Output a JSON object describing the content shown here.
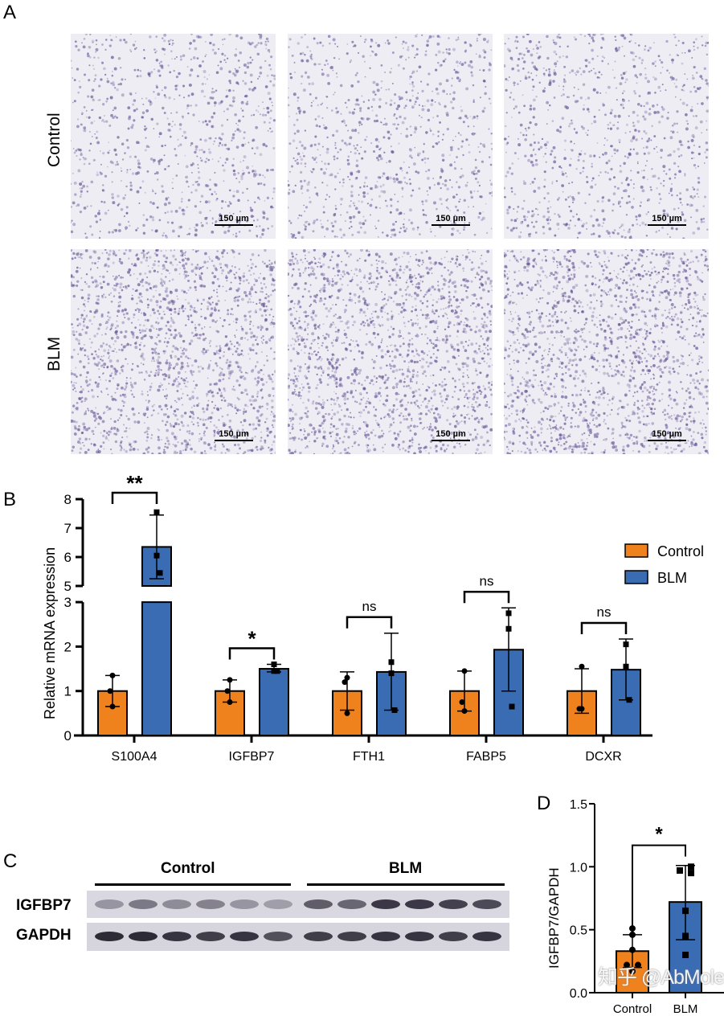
{
  "panel_labels": {
    "a": "A",
    "b": "B",
    "c": "C",
    "d": "D"
  },
  "panel_a": {
    "row_labels": [
      "Control",
      "BLM"
    ],
    "scale_bar_label": "150 µm",
    "tissue_color": "#6a5a9a"
  },
  "panel_c": {
    "group_labels": [
      "Control",
      "BLM"
    ],
    "row_labels": [
      "IGFBP7",
      "GAPDH"
    ]
  },
  "watermark": "知乎 @AbMole",
  "colors": {
    "control": "#f0821e",
    "blm": "#3a6cb4"
  },
  "chart_data": [
    {
      "type": "bar",
      "panel": "B",
      "ylabel": "Relative mRNA expression",
      "categories": [
        "S100A4",
        "IGFBP7",
        "FTH1",
        "FABP5",
        "DCXR"
      ],
      "y_axis_break": {
        "lower": [
          0,
          3
        ],
        "upper": [
          5,
          8
        ]
      },
      "yticks_lower": [
        "0",
        "1",
        "2",
        "3"
      ],
      "yticks_upper": [
        "5",
        "6",
        "7",
        "8"
      ],
      "legend": {
        "placement": "top-right",
        "entries": [
          "Control",
          "BLM"
        ]
      },
      "series": [
        {
          "name": "Control",
          "values": [
            1.0,
            1.0,
            1.0,
            1.0,
            1.0
          ],
          "err_low": [
            0.65,
            0.75,
            0.57,
            0.55,
            0.5
          ],
          "err_high": [
            1.35,
            1.25,
            1.43,
            1.45,
            1.5
          ],
          "points": [
            [
              1.35,
              1.0,
              0.65
            ],
            [
              1.25,
              1.0,
              0.75
            ],
            [
              1.3,
              1.2,
              0.5
            ],
            [
              1.45,
              0.75,
              0.55
            ],
            [
              1.55,
              0.6,
              0.6
            ]
          ]
        },
        {
          "name": "BLM",
          "values": [
            6.35,
            1.5,
            1.43,
            1.93,
            1.48
          ],
          "err_low": [
            5.25,
            1.43,
            0.57,
            1.0,
            0.8
          ],
          "err_high": [
            7.45,
            1.6,
            2.3,
            2.87,
            2.17
          ],
          "points": [
            [
              7.55,
              6.05,
              5.45
            ],
            [
              1.6,
              1.45,
              1.45
            ],
            [
              1.65,
              1.4,
              0.57
            ],
            [
              2.75,
              2.4,
              0.65
            ],
            [
              2.05,
              1.55,
              0.8
            ]
          ]
        }
      ],
      "significance": [
        "**",
        "*",
        "ns",
        "ns",
        "ns"
      ]
    },
    {
      "type": "bar",
      "panel": "D",
      "ylabel": "IGFBP7/GAPDH",
      "categories": [
        "Control",
        "BLM"
      ],
      "ylim": [
        0,
        1.5
      ],
      "yticks": [
        "0.0",
        "0.5",
        "1.0",
        "1.5"
      ],
      "values": [
        0.33,
        0.72
      ],
      "err_low": [
        0.2,
        0.42
      ],
      "err_high": [
        0.46,
        1.01
      ],
      "points": [
        [
          0.51,
          0.46,
          0.34,
          0.22,
          0.22,
          0.17
        ],
        [
          1.0,
          0.97,
          0.95,
          0.65,
          0.45,
          0.3
        ]
      ],
      "significance": "*"
    }
  ]
}
